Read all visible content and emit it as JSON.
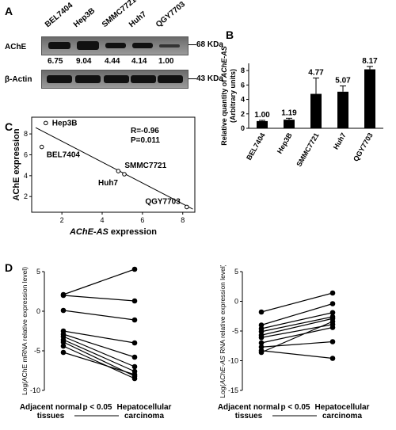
{
  "panels": {
    "a": "A",
    "b": "B",
    "c": "C",
    "d": "D"
  },
  "panelA": {
    "lanes": [
      "BEL7404",
      "Hep3B",
      "SMMC7721",
      "Huh7",
      "QGY7703"
    ],
    "row1_label": "AChE",
    "row1_marker": "68 KDa",
    "ratios": [
      "6.75",
      "9.04",
      "4.44",
      "4.14",
      "1.00"
    ],
    "row2_label": "β-Actin",
    "row2_marker": "43 KDa"
  },
  "chart_data": [
    {
      "id": "B",
      "type": "bar",
      "categories": [
        "BEL7404",
        "Hep3B",
        "SMMC7721",
        "Huh7",
        "QGY7703"
      ],
      "values": [
        1.0,
        1.19,
        4.77,
        5.07,
        8.17
      ],
      "errors": [
        0.1,
        0.2,
        2.2,
        0.8,
        0.4
      ],
      "value_labels": [
        "1.00",
        "1.19",
        "4.77",
        "5.07",
        "8.17"
      ],
      "ylabel_pre": "Relative quantity of ",
      "ylabel_italic": "AChE-AS",
      "ylabel_units": "(Arbitrary units)",
      "yticks": [
        "0",
        "2",
        "4",
        "6",
        "8"
      ],
      "ylim": [
        0,
        9
      ]
    },
    {
      "id": "C",
      "type": "scatter",
      "points": [
        {
          "label": "Hep3B",
          "x": 1.2,
          "y": 9.04
        },
        {
          "label": "BEL7404",
          "x": 1.0,
          "y": 6.75
        },
        {
          "label": "SMMC7721",
          "x": 4.8,
          "y": 4.44
        },
        {
          "label": "Huh7",
          "x": 5.1,
          "y": 4.14
        },
        {
          "label": "QGY7703",
          "x": 8.2,
          "y": 1.0
        }
      ],
      "xticks": [
        "2",
        "4",
        "6",
        "8"
      ],
      "yticks": [
        "2",
        "4",
        "6",
        "8"
      ],
      "xlabel_italic": "AChE-AS",
      "xlabel_rest": " expression",
      "ylabel": "AChE expression",
      "stats": [
        "R=-0.96",
        "P=0.011"
      ],
      "xlim": [
        0.5,
        8.6
      ],
      "ylim": [
        0.5,
        9.6
      ]
    },
    {
      "id": "D-left",
      "type": "line",
      "ylabel": "Log(AChE mRNA relative expression level)",
      "yticks": [
        "5",
        "0",
        "-5",
        "-10"
      ],
      "ylim": [
        -10,
        5
      ],
      "pairs": [
        [
          2.1,
          5.3
        ],
        [
          2.0,
          1.3
        ],
        [
          0.1,
          -1.1
        ],
        [
          -2.5,
          -4.0
        ],
        [
          -2.9,
          -5.8
        ],
        [
          -3.2,
          -7.0
        ],
        [
          -3.6,
          -7.6
        ],
        [
          -3.9,
          -8.2
        ],
        [
          -4.4,
          -8.5
        ],
        [
          -5.2,
          -8.0
        ]
      ],
      "xlabel_left": "Adjacent normal",
      "xlabel_left2": "tissues",
      "xlabel_right": "Hepatocellular",
      "xlabel_right2": "carcinoma",
      "pvalue": "p < 0.05"
    },
    {
      "id": "D-right",
      "type": "line",
      "ylabel_pre": "Log(",
      "ylabel_italic": "AChE-AS",
      "ylabel_post": " RNA relative expression level)",
      "yticks": [
        "5",
        "0",
        "-5",
        "-10",
        "-15"
      ],
      "ylim": [
        -15,
        5
      ],
      "pairs": [
        [
          -1.8,
          1.4
        ],
        [
          -4.0,
          -0.4
        ],
        [
          -4.6,
          -1.9
        ],
        [
          -5.1,
          -2.6
        ],
        [
          -5.7,
          -2.9
        ],
        [
          -6.1,
          -3.9
        ],
        [
          -7.0,
          -4.4
        ],
        [
          -7.7,
          -6.8
        ],
        [
          -8.3,
          -9.6
        ],
        [
          -8.6,
          -3.4
        ]
      ],
      "xlabel_left": "Adjacent normal",
      "xlabel_left2": "tissues",
      "xlabel_right": "Hepatocellular",
      "xlabel_right2": "carcinoma",
      "pvalue": "p < 0.05"
    }
  ]
}
